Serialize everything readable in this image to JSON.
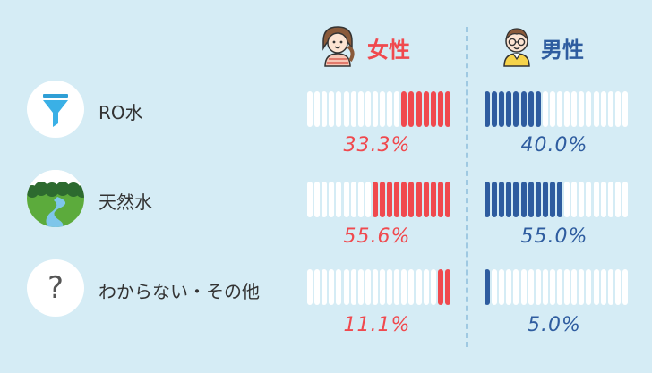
{
  "headers": {
    "female": "女性",
    "male": "男性"
  },
  "colors": {
    "female": "#f0494e",
    "male": "#2e5c9f",
    "empty": "#ffffff",
    "background": "#d5ecf5"
  },
  "bars_per_group": 20,
  "icons": {
    "female": "girl-face-icon",
    "male": "boy-with-glasses-icon",
    "ro_water": "filter-funnel-icon",
    "natural_water": "river-landscape-icon",
    "unknown": "question-mark-icon"
  },
  "question_mark": "?",
  "chart_data": {
    "type": "bar",
    "categories": [
      "RO水",
      "天然水",
      "わからない・その他"
    ],
    "series": [
      {
        "name": "女性",
        "values": [
          33.3,
          55.6,
          11.1
        ],
        "labels": [
          "33.3%",
          "55.6%",
          "11.1%"
        ]
      },
      {
        "name": "男性",
        "values": [
          40.0,
          55.0,
          5.0
        ],
        "labels": [
          "40.0%",
          "55.0%",
          "5.0%"
        ]
      }
    ],
    "ylim": [
      0,
      100
    ]
  }
}
